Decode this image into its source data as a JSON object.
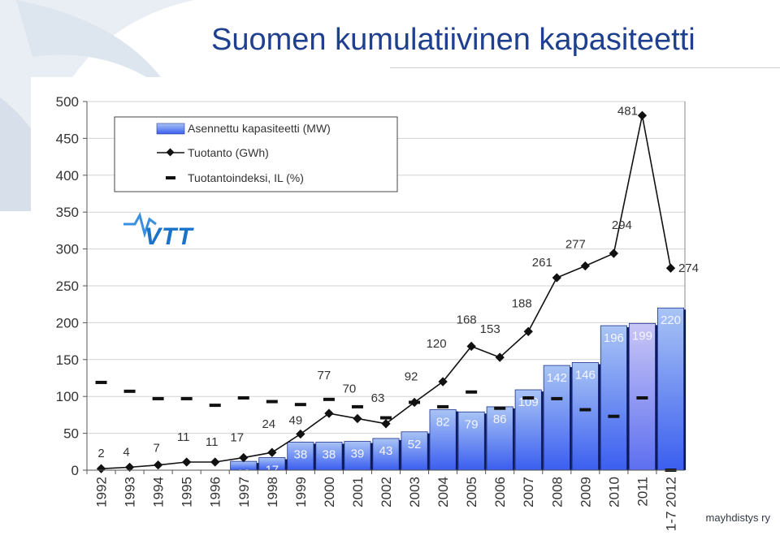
{
  "slide": {
    "title": "Suomen kumulatiivinen kapasiteetti",
    "footer_org": "mayhdistys ry",
    "logo_text": "VTT"
  },
  "colors": {
    "title": "#1f3f8f",
    "bar_top": "#a9c4f5",
    "bar_bottom": "#3b5ef0",
    "bar_highlight": "#b7b4f0",
    "line": "#111111",
    "grid": "#d3d3d3",
    "logo": "#1a73c8"
  },
  "chart_data": {
    "type": "bar",
    "categories": [
      "1992",
      "1993",
      "1994",
      "1995",
      "1996",
      "1997",
      "1998",
      "1999",
      "2000",
      "2001",
      "2002",
      "2003",
      "2004",
      "2005",
      "2006",
      "2007",
      "2008",
      "2009",
      "2010",
      "2011",
      "1-7 2012"
    ],
    "series": [
      {
        "name": "Asennettu kapasiteetti (MW)",
        "type": "bar",
        "values": [
          null,
          null,
          null,
          null,
          null,
          12,
          17,
          38,
          38,
          39,
          43,
          52,
          82,
          79,
          86,
          109,
          142,
          146,
          196,
          199,
          220
        ],
        "labels": [
          "",
          "",
          "",
          "",
          "",
          "12",
          "17",
          "38",
          "38",
          "39",
          "43",
          "52",
          "82",
          "79",
          "86",
          "109",
          "142",
          "146",
          "196",
          "199",
          "220"
        ]
      },
      {
        "name": "Tuotanto (GWh)",
        "type": "line",
        "values": [
          2,
          4,
          7,
          11,
          11,
          17,
          24,
          49,
          77,
          70,
          63,
          92,
          120,
          168,
          153,
          188,
          261,
          277,
          294,
          481,
          274
        ],
        "labels": [
          "2",
          "4",
          "7",
          "11",
          "11",
          "17",
          "24",
          "49",
          "77",
          "70",
          "63",
          "92",
          "120",
          "168",
          "153",
          "188",
          "261",
          "277",
          "294",
          "481",
          "274"
        ]
      },
      {
        "name": "Tuotantoindeksi, IL (%)",
        "type": "marker",
        "values": [
          119,
          107,
          97,
          97,
          88,
          98,
          93,
          89,
          96,
          86,
          71,
          92,
          86,
          106,
          84,
          98,
          97,
          82,
          73,
          98,
          0
        ]
      }
    ],
    "yticks": [
      "0",
      "50",
      "100",
      "150",
      "200",
      "250",
      "300",
      "350",
      "400",
      "450",
      "500"
    ],
    "ylim": [
      0,
      500
    ],
    "grid": true,
    "legend_position": "top-left"
  }
}
